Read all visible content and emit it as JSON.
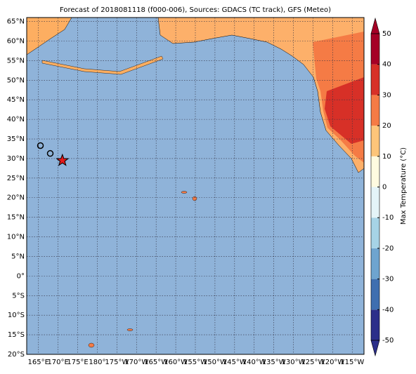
{
  "chart_data": {
    "type": "map",
    "title": "Forecast of 2018081118 (f000-006), Sources: GDACS (TC track), GFS (Meteo)",
    "xlim": [
      162,
      248
    ],
    "ylim": [
      -20,
      66
    ],
    "grid": true,
    "xticks": [
      {
        "value": 165,
        "label": "165°E"
      },
      {
        "value": 170,
        "label": "170°E"
      },
      {
        "value": 175,
        "label": "175°E"
      },
      {
        "value": 180,
        "label": "180°"
      },
      {
        "value": 185,
        "label": "175°W"
      },
      {
        "value": 190,
        "label": "170°W"
      },
      {
        "value": 195,
        "label": "165°W"
      },
      {
        "value": 200,
        "label": "160°W"
      },
      {
        "value": 205,
        "label": "155°W"
      },
      {
        "value": 210,
        "label": "150°W"
      },
      {
        "value": 215,
        "label": "145°W"
      },
      {
        "value": 220,
        "label": "140°W"
      },
      {
        "value": 225,
        "label": "135°W"
      },
      {
        "value": 230,
        "label": "130°W"
      },
      {
        "value": 235,
        "label": "125°W"
      },
      {
        "value": 240,
        "label": "120°W"
      },
      {
        "value": 245,
        "label": "115°W"
      }
    ],
    "yticks": [
      {
        "value": 65,
        "label": "65°N"
      },
      {
        "value": 60,
        "label": "60°N"
      },
      {
        "value": 55,
        "label": "55°N"
      },
      {
        "value": 50,
        "label": "50°N"
      },
      {
        "value": 45,
        "label": "45°N"
      },
      {
        "value": 40,
        "label": "40°N"
      },
      {
        "value": 35,
        "label": "35°N"
      },
      {
        "value": 30,
        "label": "30°N"
      },
      {
        "value": 25,
        "label": "25°N"
      },
      {
        "value": 20,
        "label": "20°N"
      },
      {
        "value": 15,
        "label": "15°N"
      },
      {
        "value": 10,
        "label": "10°N"
      },
      {
        "value": 5,
        "label": "5°N"
      },
      {
        "value": 0,
        "label": "0°"
      },
      {
        "value": -5,
        "label": "5°S"
      },
      {
        "value": -10,
        "label": "10°S"
      },
      {
        "value": -15,
        "label": "15°S"
      },
      {
        "value": -20,
        "label": "20°S"
      }
    ],
    "track": {
      "x": [
        165.5,
        168.0
      ],
      "y": [
        33.3,
        31.3
      ]
    },
    "current": {
      "x": 171.1,
      "y": 29.5
    },
    "colorbar": {
      "label": "Max Temperature (°C)",
      "levels": [
        -50,
        -40,
        -30,
        -20,
        -10,
        0,
        10,
        20,
        30,
        40,
        50
      ],
      "colors": [
        "#2c2f8a",
        "#3f6fb0",
        "#6ea4cf",
        "#a6d3e6",
        "#e4f4f8",
        "#fffbe0",
        "#fdc57a",
        "#f57b45",
        "#d73027",
        "#a50026"
      ]
    }
  }
}
